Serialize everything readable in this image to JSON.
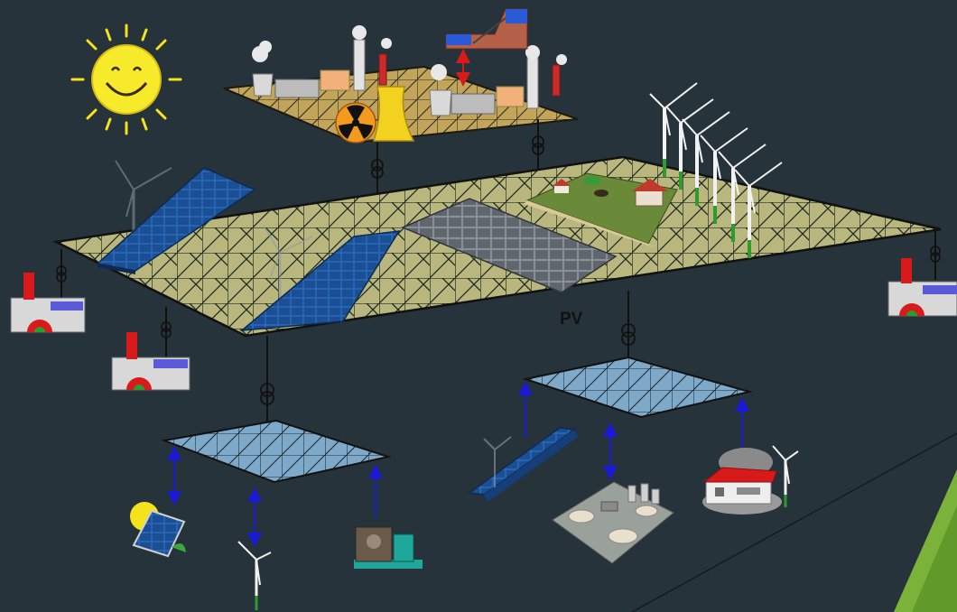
{
  "labels": {
    "pv": "PV"
  },
  "colors": {
    "background": "#27333a",
    "transmission_grid": "#b9b77e",
    "distribution_grid": "#7fa9c9",
    "solar_panel": "#1f5ea8",
    "nuclear_yellow": "#f2d21f",
    "up_arrow": "#1a1ad6",
    "double_arrow": "#1a1ad6",
    "storage_arrow": "#d81a1a",
    "accent_corner": "#7bb33a"
  },
  "icons": [
    "sun-icon",
    "nuclear-icon",
    "hydro-pumped-storage-icon",
    "thermal-plant-icon",
    "wind-turbine-icon",
    "solar-panel-icon",
    "solar-farm-icon",
    "farm-icon",
    "chp-plant-icon",
    "diesel-generator-icon",
    "biogas-plant-icon",
    "house-icon",
    "transformer-icon"
  ]
}
